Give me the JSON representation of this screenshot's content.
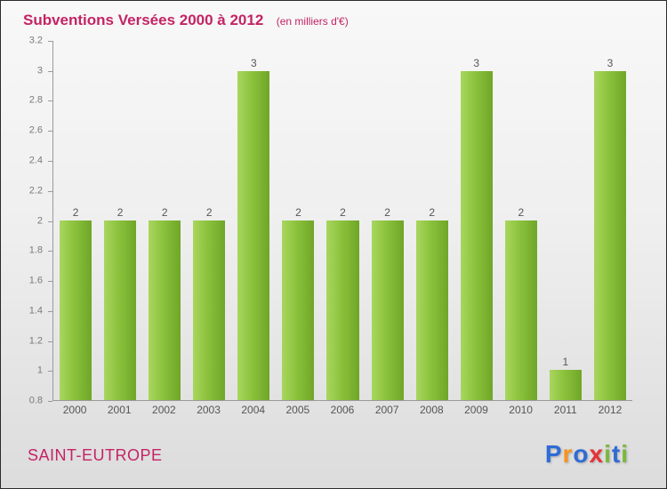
{
  "header": {
    "title": "Subventions Versées 2000 à 2012",
    "subtitle": "(en milliers d'€)"
  },
  "chart_data": {
    "type": "bar",
    "categories": [
      "2000",
      "2001",
      "2002",
      "2003",
      "2004",
      "2005",
      "2006",
      "2007",
      "2008",
      "2009",
      "2010",
      "2011",
      "2012"
    ],
    "values": [
      2,
      2,
      2,
      2,
      3,
      2,
      2,
      2,
      2,
      3,
      2,
      1,
      3
    ],
    "title": "Subventions Versées 2000 à 2012",
    "subtitle": "(en milliers d'€)",
    "xlabel": "",
    "ylabel": "",
    "ylim": [
      0.8,
      3.2
    ],
    "ytick_step": 0.2,
    "grid": false,
    "legend": false,
    "bar_color": "#8BC23C",
    "value_label_color": "#555555"
  },
  "footer": {
    "location": "SAINT-EUTROPE",
    "logo": {
      "text": "Proxiti",
      "letters": [
        {
          "char": "P",
          "color": "#2e6bd6"
        },
        {
          "char": "r",
          "color": "#f7941e"
        },
        {
          "char": "o",
          "color": "#2e6bd6"
        },
        {
          "char": "x",
          "color": "#e53238"
        },
        {
          "char": "i",
          "color": "#7ab83c"
        },
        {
          "char": "t",
          "color": "#2e6bd6"
        },
        {
          "char": "i",
          "color": "#7ab83c"
        }
      ]
    }
  },
  "colors": {
    "title": "#c42365",
    "axis": "#9a9a9a",
    "tick_label": "#7a7a7a"
  }
}
